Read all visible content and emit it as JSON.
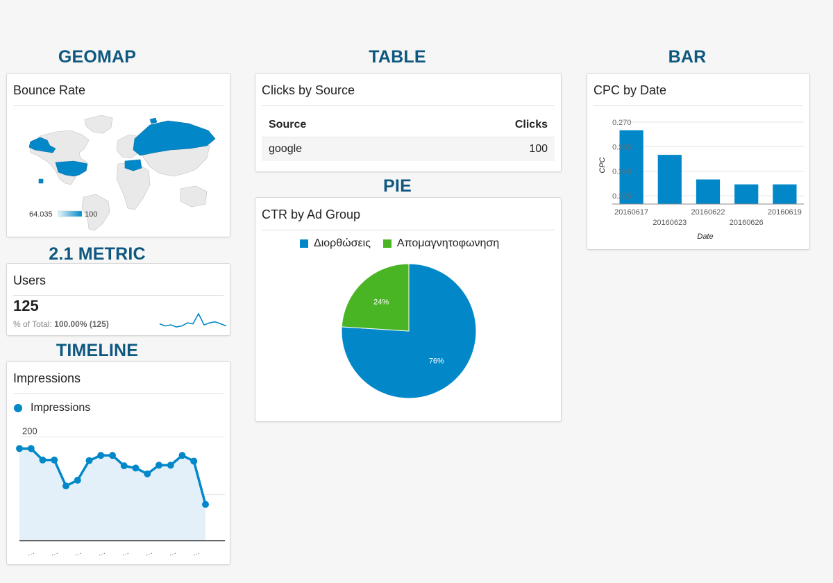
{
  "sections": {
    "geomap": "GEOMAP",
    "table": "TABLE",
    "bar": "BAR",
    "metric": "2.1 METRIC",
    "pie": "PIE",
    "timeline": "TIMELINE"
  },
  "geomap": {
    "card_title": "Bounce Rate",
    "legend_min": "64.035",
    "legend_max": "100",
    "colors": {
      "highlight": "#0288c9",
      "land": "#e8e8e8",
      "border": "#bdbdbd"
    }
  },
  "table": {
    "card_title": "Clicks by Source",
    "headers": [
      "Source",
      "Clicks"
    ],
    "rows": [
      [
        "google",
        "100"
      ]
    ]
  },
  "bar": {
    "card_title": "CPC by Date",
    "xlabel": "Date",
    "ylabel": "CPC",
    "yticks": [
      "0.270",
      "0.255",
      "0.240",
      "0.225"
    ],
    "categories": [
      "20160617",
      "20160623",
      "20160622",
      "20160626",
      "20160619"
    ]
  },
  "metric": {
    "card_title": "Users",
    "value": "125",
    "pct_label": "% of Total:",
    "pct_value": "100.00% (125)",
    "sparkline": [
      5,
      3,
      4,
      2,
      3,
      6,
      5,
      15,
      4,
      6,
      7,
      5,
      3
    ]
  },
  "pie": {
    "card_title": "CTR by Ad Group",
    "legend": [
      "Διορθώσεις",
      "Απομαγνητοφωνηση"
    ],
    "labels": [
      "76%",
      "24%"
    ]
  },
  "timeline": {
    "card_title": "Impressions",
    "legend": "Impressions",
    "yticks": [
      "200",
      "100"
    ],
    "xtick": "…"
  },
  "colors": {
    "primary": "#0288c9",
    "secondary": "#4ab524",
    "title": "#0e5880",
    "area": "#e4f0f9"
  },
  "chart_data": [
    {
      "type": "bar",
      "title": "CPC by Date",
      "xlabel": "Date",
      "ylabel": "CPC",
      "categories": [
        "20160617",
        "20160623",
        "20160622",
        "20160626",
        "20160619"
      ],
      "values": [
        0.265,
        0.25,
        0.235,
        0.232,
        0.232
      ],
      "ylim": [
        0.22,
        0.275
      ],
      "grid": true
    },
    {
      "type": "pie",
      "title": "CTR by Ad Group",
      "categories": [
        "Διορθώσεις",
        "Απομαγνητοφωνηση"
      ],
      "values": [
        76,
        24
      ],
      "legend": "top"
    },
    {
      "type": "area",
      "title": "Impressions",
      "series": [
        {
          "name": "Impressions",
          "values": [
            180,
            180,
            160,
            160,
            115,
            125,
            159,
            168,
            168,
            150,
            146,
            136,
            151,
            151,
            168,
            158,
            83
          ]
        }
      ],
      "ylim": [
        20,
        220
      ],
      "grid": true
    }
  ]
}
